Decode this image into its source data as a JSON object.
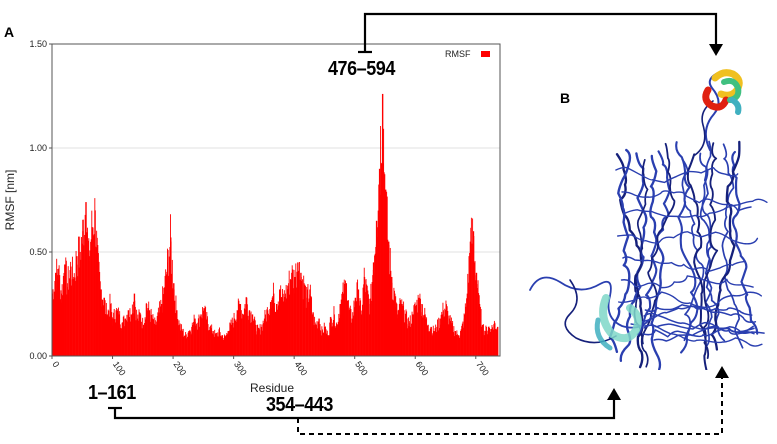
{
  "panels": {
    "a": "A",
    "b": "B"
  },
  "regions": {
    "r1": "1–161",
    "r2": "354–443",
    "r3": "476–594"
  },
  "chart_data": {
    "type": "bar",
    "title": "",
    "xlabel": "Residue",
    "ylabel": "RMSF [nm]",
    "xlim": [
      0,
      740
    ],
    "ylim": [
      0,
      1.5
    ],
    "xticks": [
      "0",
      "100",
      "200",
      "300",
      "400",
      "500",
      "600",
      "700"
    ],
    "yticks": [
      "0.00",
      "0.50",
      "1.00",
      "1.50"
    ],
    "grid": true,
    "legend": {
      "position": "top-right",
      "label": "RMSF",
      "color": "#ff0000"
    },
    "series": [
      {
        "name": "RMSF",
        "color": "#ff0000",
        "points": [
          [
            0,
            0.3
          ],
          [
            5,
            0.4
          ],
          [
            10,
            0.42
          ],
          [
            15,
            0.3
          ],
          [
            20,
            0.44
          ],
          [
            25,
            0.35
          ],
          [
            30,
            0.43
          ],
          [
            35,
            0.38
          ],
          [
            40,
            0.48
          ],
          [
            45,
            0.5
          ],
          [
            50,
            0.6
          ],
          [
            55,
            0.74
          ],
          [
            60,
            0.48
          ],
          [
            65,
            0.62
          ],
          [
            70,
            0.7
          ],
          [
            75,
            0.45
          ],
          [
            80,
            0.32
          ],
          [
            85,
            0.28
          ],
          [
            90,
            0.2
          ],
          [
            95,
            0.25
          ],
          [
            100,
            0.18
          ],
          [
            105,
            0.22
          ],
          [
            110,
            0.2
          ],
          [
            115,
            0.16
          ],
          [
            120,
            0.18
          ],
          [
            125,
            0.22
          ],
          [
            130,
            0.2
          ],
          [
            135,
            0.3
          ],
          [
            140,
            0.18
          ],
          [
            145,
            0.2
          ],
          [
            150,
            0.15
          ],
          [
            155,
            0.25
          ],
          [
            160,
            0.22
          ],
          [
            165,
            0.18
          ],
          [
            170,
            0.15
          ],
          [
            175,
            0.2
          ],
          [
            180,
            0.25
          ],
          [
            185,
            0.33
          ],
          [
            190,
            0.45
          ],
          [
            195,
            0.57
          ],
          [
            200,
            0.35
          ],
          [
            205,
            0.22
          ],
          [
            210,
            0.15
          ],
          [
            215,
            0.12
          ],
          [
            220,
            0.1
          ],
          [
            225,
            0.12
          ],
          [
            230,
            0.14
          ],
          [
            235,
            0.18
          ],
          [
            240,
            0.16
          ],
          [
            245,
            0.2
          ],
          [
            250,
            0.23
          ],
          [
            255,
            0.18
          ],
          [
            260,
            0.14
          ],
          [
            265,
            0.12
          ],
          [
            270,
            0.1
          ],
          [
            275,
            0.12
          ],
          [
            280,
            0.1
          ],
          [
            285,
            0.09
          ],
          [
            290,
            0.12
          ],
          [
            295,
            0.15
          ],
          [
            300,
            0.18
          ],
          [
            305,
            0.22
          ],
          [
            310,
            0.25
          ],
          [
            315,
            0.2
          ],
          [
            320,
            0.28
          ],
          [
            325,
            0.22
          ],
          [
            330,
            0.2
          ],
          [
            335,
            0.15
          ],
          [
            340,
            0.12
          ],
          [
            345,
            0.14
          ],
          [
            350,
            0.18
          ],
          [
            355,
            0.22
          ],
          [
            360,
            0.26
          ],
          [
            365,
            0.3
          ],
          [
            370,
            0.25
          ],
          [
            375,
            0.32
          ],
          [
            380,
            0.28
          ],
          [
            385,
            0.3
          ],
          [
            390,
            0.35
          ],
          [
            395,
            0.4
          ],
          [
            400,
            0.38
          ],
          [
            405,
            0.45
          ],
          [
            410,
            0.4
          ],
          [
            415,
            0.35
          ],
          [
            420,
            0.28
          ],
          [
            425,
            0.32
          ],
          [
            430,
            0.2
          ],
          [
            435,
            0.15
          ],
          [
            440,
            0.18
          ],
          [
            445,
            0.12
          ],
          [
            450,
            0.14
          ],
          [
            455,
            0.1
          ],
          [
            460,
            0.18
          ],
          [
            465,
            0.2
          ],
          [
            470,
            0.15
          ],
          [
            475,
            0.25
          ],
          [
            480,
            0.3
          ],
          [
            485,
            0.35
          ],
          [
            490,
            0.22
          ],
          [
            495,
            0.18
          ],
          [
            500,
            0.28
          ],
          [
            505,
            0.32
          ],
          [
            510,
            0.2
          ],
          [
            515,
            0.38
          ],
          [
            520,
            0.3
          ],
          [
            525,
            0.25
          ],
          [
            530,
            0.45
          ],
          [
            535,
            0.65
          ],
          [
            540,
            0.9
          ],
          [
            545,
            1.26
          ],
          [
            550,
            0.8
          ],
          [
            555,
            0.55
          ],
          [
            560,
            0.38
          ],
          [
            565,
            0.3
          ],
          [
            570,
            0.2
          ],
          [
            575,
            0.25
          ],
          [
            580,
            0.22
          ],
          [
            585,
            0.18
          ],
          [
            590,
            0.16
          ],
          [
            595,
            0.2
          ],
          [
            600,
            0.24
          ],
          [
            605,
            0.28
          ],
          [
            610,
            0.25
          ],
          [
            615,
            0.2
          ],
          [
            620,
            0.15
          ],
          [
            625,
            0.14
          ],
          [
            630,
            0.12
          ],
          [
            635,
            0.14
          ],
          [
            640,
            0.18
          ],
          [
            645,
            0.22
          ],
          [
            650,
            0.24
          ],
          [
            655,
            0.18
          ],
          [
            660,
            0.15
          ],
          [
            665,
            0.12
          ],
          [
            670,
            0.1
          ],
          [
            675,
            0.12
          ],
          [
            680,
            0.18
          ],
          [
            685,
            0.3
          ],
          [
            690,
            0.55
          ],
          [
            695,
            0.6
          ],
          [
            700,
            0.4
          ],
          [
            705,
            0.25
          ],
          [
            710,
            0.15
          ],
          [
            715,
            0.12
          ],
          [
            720,
            0.14
          ],
          [
            725,
            0.13
          ],
          [
            730,
            0.16
          ],
          [
            735,
            0.14
          ]
        ]
      }
    ]
  },
  "colors": {
    "arrow": "#000000",
    "ribbon": "#2a3fb0",
    "ribbon_dark": "#15207a",
    "hot": "#e02010",
    "warm": "#f0c020",
    "cool": "#40b0c0"
  }
}
